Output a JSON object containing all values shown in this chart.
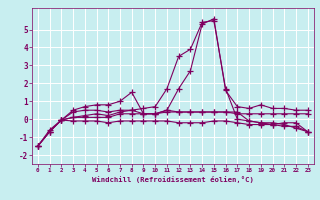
{
  "xlabel": "Windchill (Refroidissement éolien,°C)",
  "bg_color": "#c8eef0",
  "grid_color": "#ffffff",
  "line_color": "#800060",
  "xlim": [
    -0.5,
    23.5
  ],
  "ylim": [
    -2.5,
    6.2
  ],
  "yticks": [
    -2,
    -1,
    0,
    1,
    2,
    3,
    4,
    5
  ],
  "xticks": [
    0,
    1,
    2,
    3,
    4,
    5,
    6,
    7,
    8,
    9,
    10,
    11,
    12,
    13,
    14,
    15,
    16,
    17,
    18,
    19,
    20,
    21,
    22,
    23
  ],
  "xtick_labels": [
    "0",
    "1",
    "2",
    "3",
    "4",
    "5",
    "6",
    "7",
    "8",
    "9",
    "10",
    "11",
    "12",
    "13",
    "14",
    "15",
    "16",
    "17",
    "18",
    "19",
    "20",
    "21",
    "22",
    "23"
  ],
  "series": [
    {
      "x": [
        0,
        1,
        2,
        3,
        4,
        5,
        6,
        7,
        8,
        9,
        10,
        11,
        12,
        13,
        14,
        15,
        16,
        17,
        18,
        19,
        20,
        21,
        22,
        23
      ],
      "y": [
        -1.5,
        -0.7,
        -0.05,
        0.1,
        0.2,
        0.3,
        0.2,
        0.4,
        0.5,
        0.6,
        0.7,
        1.7,
        3.5,
        3.9,
        5.4,
        5.5,
        1.7,
        0.0,
        -0.1,
        -0.2,
        -0.3,
        -0.2,
        -0.2,
        -0.7
      ]
    },
    {
      "x": [
        0,
        1,
        2,
        3,
        4,
        5,
        6,
        7,
        8,
        9,
        10,
        11,
        12,
        13,
        14,
        15,
        16,
        17,
        18,
        19,
        20,
        21,
        22,
        23
      ],
      "y": [
        -1.5,
        -0.6,
        -0.05,
        0.5,
        0.7,
        0.8,
        0.8,
        1.0,
        1.5,
        0.3,
        0.3,
        0.5,
        1.7,
        2.7,
        5.3,
        5.6,
        1.6,
        0.7,
        0.6,
        0.8,
        0.6,
        0.6,
        0.5,
        0.5
      ]
    },
    {
      "x": [
        0,
        1,
        2,
        3,
        4,
        5,
        6,
        7,
        8,
        9,
        10,
        11,
        12,
        13,
        14,
        15,
        16,
        17,
        18,
        19,
        20,
        21,
        22,
        23
      ],
      "y": [
        -1.5,
        -0.7,
        -0.05,
        0.1,
        0.1,
        0.1,
        0.1,
        0.3,
        0.3,
        0.3,
        0.3,
        0.5,
        0.4,
        0.4,
        0.4,
        0.4,
        0.4,
        0.3,
        0.3,
        0.3,
        0.3,
        0.3,
        0.3,
        0.3
      ]
    },
    {
      "x": [
        0,
        1,
        2,
        3,
        4,
        5,
        6,
        7,
        8,
        9,
        10,
        11,
        12,
        13,
        14,
        15,
        16,
        17,
        18,
        19,
        20,
        21,
        22,
        23
      ],
      "y": [
        -1.5,
        -0.7,
        -0.05,
        -0.1,
        -0.1,
        -0.1,
        -0.2,
        -0.1,
        -0.1,
        -0.1,
        -0.1,
        -0.1,
        -0.2,
        -0.2,
        -0.2,
        -0.1,
        -0.1,
        -0.2,
        -0.3,
        -0.3,
        -0.3,
        -0.4,
        -0.4,
        -0.7
      ]
    },
    {
      "x": [
        2,
        3,
        4,
        5,
        6,
        7,
        8,
        9,
        10,
        11,
        12,
        13,
        14,
        15,
        16,
        17,
        18,
        19,
        20,
        21,
        22,
        23
      ],
      "y": [
        -0.05,
        0.4,
        0.5,
        0.5,
        0.4,
        0.5,
        0.5,
        0.3,
        0.3,
        0.4,
        0.4,
        0.4,
        0.4,
        0.4,
        0.4,
        0.4,
        -0.1,
        -0.2,
        -0.2,
        -0.3,
        -0.5,
        -0.7
      ]
    }
  ]
}
